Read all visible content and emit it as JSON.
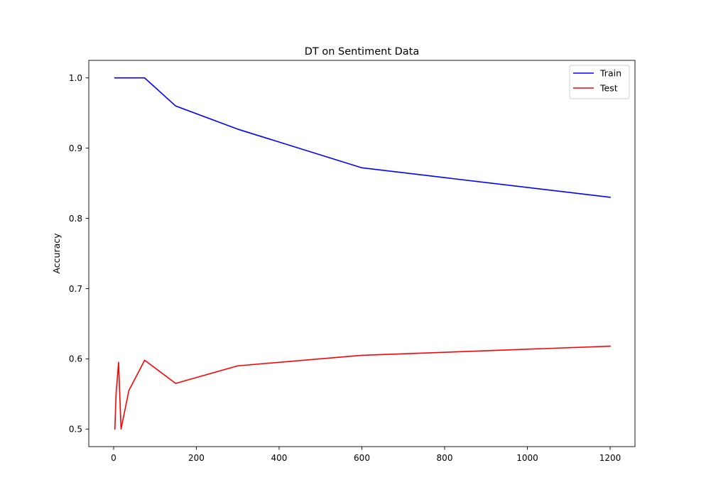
{
  "chart_data": {
    "type": "line",
    "title": "DT on Sentiment Data",
    "xlabel": "",
    "ylabel": "Accuracy",
    "xlim": [
      -60,
      1260
    ],
    "ylim": [
      0.475,
      1.025
    ],
    "xticks": [
      0,
      200,
      400,
      600,
      800,
      1000,
      1200
    ],
    "xtick_labels": [
      "0",
      "200",
      "400",
      "600",
      "800",
      "1000",
      "1200"
    ],
    "yticks": [
      0.5,
      0.6,
      0.7,
      0.8,
      0.9,
      1.0
    ],
    "ytick_labels": [
      "0.5",
      "0.6",
      "0.7",
      "0.8",
      "0.9",
      "1.0"
    ],
    "grid": false,
    "legend_position": "top-right",
    "series": [
      {
        "name": "Train",
        "color": "#0000ff",
        "x": [
          3,
          6,
          12,
          18,
          37,
          75,
          150,
          300,
          600,
          1200
        ],
        "y": [
          1.0,
          1.0,
          1.0,
          1.0,
          1.0,
          1.0,
          0.96,
          0.927,
          0.872,
          0.83
        ]
      },
      {
        "name": "Test",
        "color": "#ff0000",
        "x": [
          3,
          6,
          12,
          18,
          37,
          75,
          150,
          300,
          600,
          1200
        ],
        "y": [
          0.5,
          0.55,
          0.595,
          0.5,
          0.555,
          0.598,
          0.565,
          0.59,
          0.605,
          0.618
        ]
      }
    ]
  }
}
